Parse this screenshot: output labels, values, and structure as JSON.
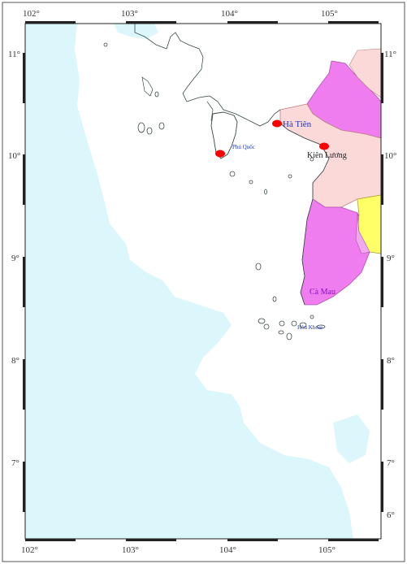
{
  "map": {
    "longitude_ticks": [
      "102°",
      "103°",
      "104°",
      "105°"
    ],
    "latitude_ticks_left": [
      "11°",
      "10°",
      "9°",
      "8°",
      "7°"
    ],
    "latitude_ticks_right": [
      "11°",
      "10°",
      "9°",
      "8°",
      "7°",
      "6°"
    ],
    "places": {
      "ha_tien": "Hà Tiên",
      "phu_quoc": "Phú Quốc",
      "kien_luong": "Kiên Lương",
      "ca_mau": "Cà Mau",
      "hon_khoai": "Hòn Khoai"
    },
    "colors": {
      "sea_shallow": "#dcf7fb",
      "sea_deep": "#ffffff",
      "province_magenta": "#f07df0",
      "province_pink": "#fbd9d9",
      "province_yellow": "#ffff66",
      "province_light_magenta": "#f0a8ee",
      "town_marker": "#ff0000",
      "label_blue": "#1a35c8",
      "label_purple": "#8a10b8"
    }
  }
}
